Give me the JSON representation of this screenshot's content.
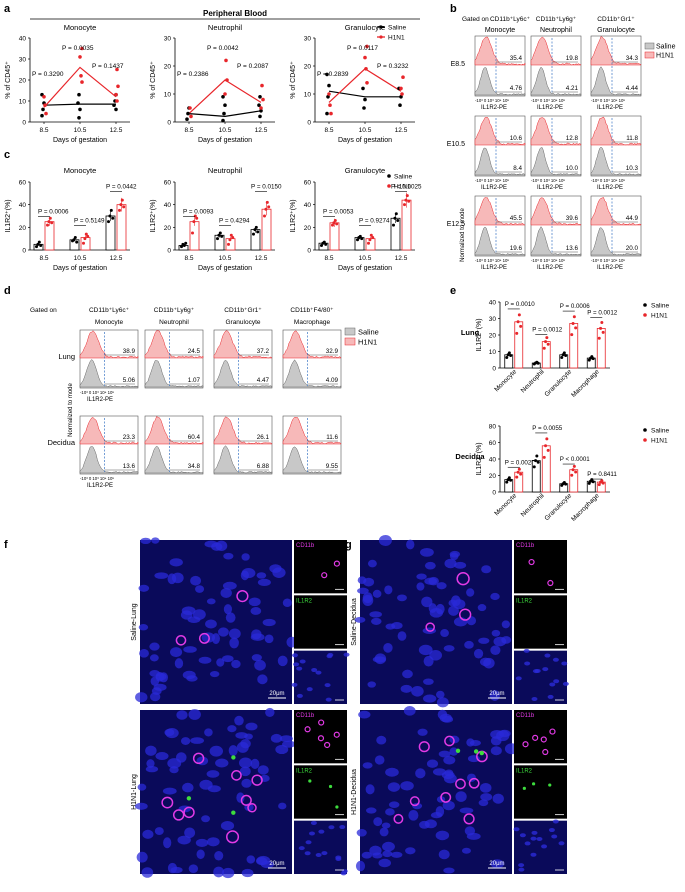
{
  "colors": {
    "saline": "#000000",
    "h1n1": "#e8262b",
    "h1n1_fill": "#f7b9b9",
    "saline_fill": "#c8c8c8",
    "micro_bg": "#0a0a5a"
  },
  "panel_letters": {
    "a": "a",
    "b": "b",
    "c": "c",
    "d": "d",
    "e": "e",
    "f": "f",
    "g": "g"
  },
  "panel_a": {
    "header": "Peripheral Blood",
    "legend": {
      "saline": "Saline",
      "h1n1": "H1N1"
    },
    "ylabel": "% of CD45⁺",
    "xlabel": "Days of gestation",
    "xticks": [
      "8.5",
      "10.5",
      "12.5"
    ],
    "plots": [
      {
        "title": "Monocyte",
        "yticks": [
          "0",
          "10",
          "20",
          "30",
          "40"
        ],
        "ymax": 40,
        "saline_line": [
          8,
          8.5,
          8.5
        ],
        "h1n1_line": [
          7,
          26,
          12
        ],
        "saline_pts": [
          [
            1,
            3
          ],
          [
            1,
            6
          ],
          [
            1,
            9
          ],
          [
            1,
            13
          ],
          [
            2,
            2
          ],
          [
            2,
            6
          ],
          [
            2,
            9
          ],
          [
            2,
            13
          ],
          [
            3,
            6
          ],
          [
            3,
            8
          ],
          [
            3,
            10
          ],
          [
            3,
            13
          ]
        ],
        "h1n1_pts": [
          [
            1,
            4
          ],
          [
            1,
            8
          ],
          [
            1,
            12
          ],
          [
            2,
            19
          ],
          [
            2,
            22
          ],
          [
            2,
            31
          ],
          [
            2,
            35
          ],
          [
            3,
            10
          ],
          [
            3,
            13
          ],
          [
            3,
            17
          ],
          [
            3,
            25
          ]
        ],
        "p1": "P = 0.3290",
        "p2": "P = 0.0035",
        "p3": "P = 0.1437"
      },
      {
        "title": "Neutrophil",
        "yticks": [
          "0",
          "10",
          "20",
          "30"
        ],
        "ymax": 30,
        "saline_line": [
          3,
          2,
          4
        ],
        "h1n1_line": [
          3,
          15,
          7
        ],
        "saline_pts": [
          [
            1,
            1
          ],
          [
            1,
            3
          ],
          [
            1,
            5
          ],
          [
            2,
            0.5
          ],
          [
            2,
            3
          ],
          [
            2,
            6
          ],
          [
            2,
            9
          ],
          [
            3,
            2
          ],
          [
            3,
            4
          ],
          [
            3,
            6
          ],
          [
            3,
            9
          ]
        ],
        "h1n1_pts": [
          [
            1,
            2
          ],
          [
            1,
            5
          ],
          [
            2,
            10
          ],
          [
            2,
            15
          ],
          [
            2,
            22
          ],
          [
            3,
            5
          ],
          [
            3,
            8
          ],
          [
            3,
            13
          ]
        ],
        "p1": "P = 0.2386",
        "p2": "P = 0.0042",
        "p3": "P = 0.2087"
      },
      {
        "title": "Granulocyte",
        "yticks": [
          "0",
          "10",
          "20",
          "30"
        ],
        "ymax": 30,
        "saline_line": [
          11,
          9,
          9
        ],
        "h1n1_line": [
          7,
          19,
          11
        ],
        "saline_pts": [
          [
            1,
            3
          ],
          [
            1,
            9
          ],
          [
            1,
            13
          ],
          [
            1,
            17
          ],
          [
            2,
            5
          ],
          [
            2,
            8
          ],
          [
            2,
            12
          ],
          [
            3,
            6
          ],
          [
            3,
            9
          ],
          [
            3,
            12
          ]
        ],
        "h1n1_pts": [
          [
            1,
            3
          ],
          [
            1,
            6
          ],
          [
            1,
            10
          ],
          [
            2,
            14
          ],
          [
            2,
            19
          ],
          [
            2,
            23
          ],
          [
            2,
            27
          ],
          [
            3,
            10
          ],
          [
            3,
            12
          ],
          [
            3,
            16
          ]
        ],
        "p1": "P = 0.2839",
        "p2": "P = 0.0117",
        "p3": "P = 0.3232"
      }
    ]
  },
  "panel_b": {
    "gated_on": "Gated on",
    "gates": [
      "CD11b⁺Ly6c⁺",
      "CD11b⁺Ly6g⁺",
      "CD11b⁺Gr1⁺"
    ],
    "cell_types": [
      "Monocyte",
      "Neutrophil",
      "Granulocyte"
    ],
    "legend": {
      "saline": "Saline",
      "h1n1": "H1N1"
    },
    "rows": [
      {
        "label": "E8.5",
        "h1n1": [
          "35.4",
          "19.8",
          "34.3"
        ],
        "saline": [
          "4.76",
          "4.21",
          "4.44"
        ]
      },
      {
        "label": "E10.5",
        "h1n1": [
          "10.6",
          "12.8",
          "11.8"
        ],
        "saline": [
          "8.4",
          "10.0",
          "10.3"
        ]
      },
      {
        "label": "E12.5",
        "h1n1": [
          "45.5",
          "39.6",
          "44.9"
        ],
        "saline": [
          "19.6",
          "13.6",
          "20.0"
        ]
      }
    ],
    "xaxis": "IL1R2-PE",
    "ylabel": "Normalized to mode",
    "ticks": "-10³ 0 10³ 10⁴ 10⁵"
  },
  "panel_c": {
    "legend": {
      "saline": "Saline",
      "h1n1": "H1N1"
    },
    "ylabel": "IL1R2⁺(%)",
    "xlabel": "Days of gestation",
    "xticks": [
      "8.5",
      "10.5",
      "12.5"
    ],
    "plots": [
      {
        "title": "Monocyte",
        "yticks": [
          "0",
          "20",
          "40",
          "60"
        ],
        "ymax": 60,
        "saline": [
          5,
          9,
          30
        ],
        "h1n1": [
          25,
          11,
          40
        ],
        "saline_pts": [
          [
            3,
            5,
            7,
            4
          ],
          [
            8,
            9,
            11,
            7
          ],
          [
            25,
            30,
            35,
            28
          ]
        ],
        "h1n1_pts": [
          [
            22,
            25,
            28,
            24
          ],
          [
            6,
            10,
            14,
            12
          ],
          [
            35,
            40,
            44,
            38
          ]
        ],
        "p1": "P = 0.0006",
        "p2": "P = 0.5149",
        "p3": "P = 0.0442"
      },
      {
        "title": "Neutrophil",
        "yticks": [
          "0",
          "20",
          "40",
          "60"
        ],
        "ymax": 60,
        "saline": [
          4,
          13,
          18
        ],
        "h1n1": [
          25,
          10,
          36
        ],
        "saline_pts": [
          [
            3,
            5,
            4,
            6
          ],
          [
            10,
            13,
            15,
            12
          ],
          [
            14,
            18,
            20,
            16
          ]
        ],
        "h1n1_pts": [
          [
            15,
            25,
            30,
            28
          ],
          [
            5,
            9,
            13,
            11
          ],
          [
            30,
            36,
            42,
            38
          ]
        ],
        "p1": "P = 0.0093",
        "p2": "P = 0.4294",
        "p3": "P = 0.0150"
      },
      {
        "title": "Granulocyte",
        "yticks": [
          "0",
          "20",
          "40",
          "60"
        ],
        "ymax": 60,
        "saline": [
          6,
          11,
          28
        ],
        "h1n1": [
          24,
          10,
          44
        ],
        "saline_pts": [
          [
            4,
            6,
            7,
            5
          ],
          [
            9,
            11,
            12,
            10
          ],
          [
            22,
            28,
            32,
            26
          ]
        ],
        "h1n1_pts": [
          [
            22,
            24,
            26,
            23
          ],
          [
            6,
            9,
            13,
            11
          ],
          [
            40,
            44,
            48,
            43
          ]
        ],
        "p1": "P = 0.0053",
        "p2": "P = 0.9274",
        "p3": "P = 0.0025"
      }
    ]
  },
  "panel_d": {
    "gated_on": "Gated on",
    "gates": [
      "CD11b⁺Ly6c⁺",
      "CD11b⁺Ly6g⁺",
      "CD11b⁺Gr1⁺",
      "CD11b⁺F4/80⁺"
    ],
    "cell_types": [
      "Monocyte",
      "Neutrophil",
      "Granulocyte",
      "Macrophage"
    ],
    "legend": {
      "saline": "Saline",
      "h1n1": "H1N1"
    },
    "rows": [
      {
        "label": "Lung",
        "h1n1": [
          "38.9",
          "24.5",
          "37.2",
          "32.9"
        ],
        "saline": [
          "5.06",
          "1.07",
          "4.47",
          "4.09"
        ]
      },
      {
        "label": "Decidua",
        "h1n1": [
          "23.3",
          "60.4",
          "26.1",
          "11.6"
        ],
        "saline": [
          "13.6",
          "34.8",
          "6.88",
          "9.55"
        ]
      }
    ],
    "xaxis": "IL1R2-PE",
    "ylabel": "Normalized to mode",
    "ticks": "-10³ 0 10³ 10⁴ 10⁵"
  },
  "panel_e": {
    "legend": {
      "saline": "Saline",
      "h1n1": "H1N1"
    },
    "ylabel": "IL1R2⁺(%)",
    "categories": [
      "Monocyte",
      "Neutrophil",
      "Granulocyte",
      "Macrophage"
    ],
    "charts": [
      {
        "label": "Lung",
        "yticks": [
          "0",
          "10",
          "20",
          "30",
          "40"
        ],
        "ymax": 40,
        "saline": [
          8,
          3,
          8,
          6
        ],
        "h1n1": [
          28,
          16,
          27,
          24
        ],
        "p": [
          "P = 0.0010",
          "P = 0.0012",
          "P = 0.0006",
          "P = 0.0012"
        ]
      },
      {
        "label": "Decidua",
        "yticks": [
          "0",
          "20",
          "40",
          "60",
          "80"
        ],
        "ymax": 80,
        "saline": [
          15,
          38,
          10,
          13
        ],
        "h1n1": [
          24,
          56,
          27,
          12
        ],
        "p": [
          "P = 0.0025",
          "P = 0.0055",
          "P < 0.0001",
          "P = 0.8411"
        ]
      }
    ]
  },
  "panel_f": {
    "rows": [
      {
        "label": "Saline-Lung"
      },
      {
        "label": "H1N1-Lung"
      }
    ],
    "channels": [
      "CD11b",
      "IL1R2"
    ],
    "scale": "20μm"
  },
  "panel_g": {
    "rows": [
      {
        "label": "Saline-Decidua"
      },
      {
        "label": "H1N1-Decidua"
      }
    ],
    "channels": [
      "CD11b",
      "IL1R2"
    ],
    "scale": "20μm"
  }
}
